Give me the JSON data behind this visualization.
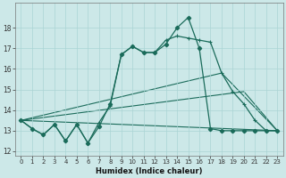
{
  "xlabel": "Humidex (Indice chaleur)",
  "bg_color": "#cce8e8",
  "grid_color": "#aad4d4",
  "line_color": "#1a6b5a",
  "xlim": [
    -0.5,
    23.5
  ],
  "ylim": [
    11.8,
    19.2
  ],
  "yticks": [
    12,
    13,
    14,
    15,
    16,
    17,
    18
  ],
  "xticks": [
    0,
    1,
    2,
    3,
    4,
    5,
    6,
    7,
    8,
    9,
    10,
    11,
    12,
    13,
    14,
    15,
    16,
    17,
    18,
    19,
    20,
    21,
    22,
    23
  ],
  "line1_x": [
    0,
    1,
    2,
    3,
    4,
    5,
    6,
    7,
    8,
    9,
    10,
    11,
    12,
    13,
    14,
    15,
    16,
    17,
    18,
    19,
    20,
    21,
    22,
    23
  ],
  "line1_y": [
    13.5,
    13.1,
    12.8,
    13.3,
    12.5,
    13.3,
    12.4,
    13.2,
    14.3,
    16.7,
    17.1,
    16.8,
    16.8,
    17.2,
    18.0,
    18.5,
    17.0,
    13.1,
    13.0,
    13.0,
    13.0,
    13.0,
    13.0,
    13.0
  ],
  "line2_x": [
    0,
    1,
    2,
    3,
    4,
    5,
    6,
    7,
    8,
    9,
    10,
    11,
    12,
    13,
    14,
    15,
    16,
    17,
    18,
    19,
    20,
    21,
    22,
    23
  ],
  "line2_y": [
    13.5,
    13.1,
    12.8,
    13.3,
    12.5,
    13.3,
    12.4,
    13.4,
    14.2,
    16.7,
    17.1,
    16.8,
    16.8,
    17.4,
    17.6,
    17.5,
    17.4,
    17.3,
    15.8,
    14.9,
    14.3,
    13.5,
    13.0,
    13.0
  ],
  "line3_x": [
    0,
    23
  ],
  "line3_y": [
    13.5,
    13.0
  ],
  "line4_x": [
    0,
    18,
    23
  ],
  "line4_y": [
    13.5,
    15.8,
    13.0
  ],
  "line5_x": [
    0,
    20,
    23
  ],
  "line5_y": [
    13.5,
    14.9,
    13.0
  ]
}
